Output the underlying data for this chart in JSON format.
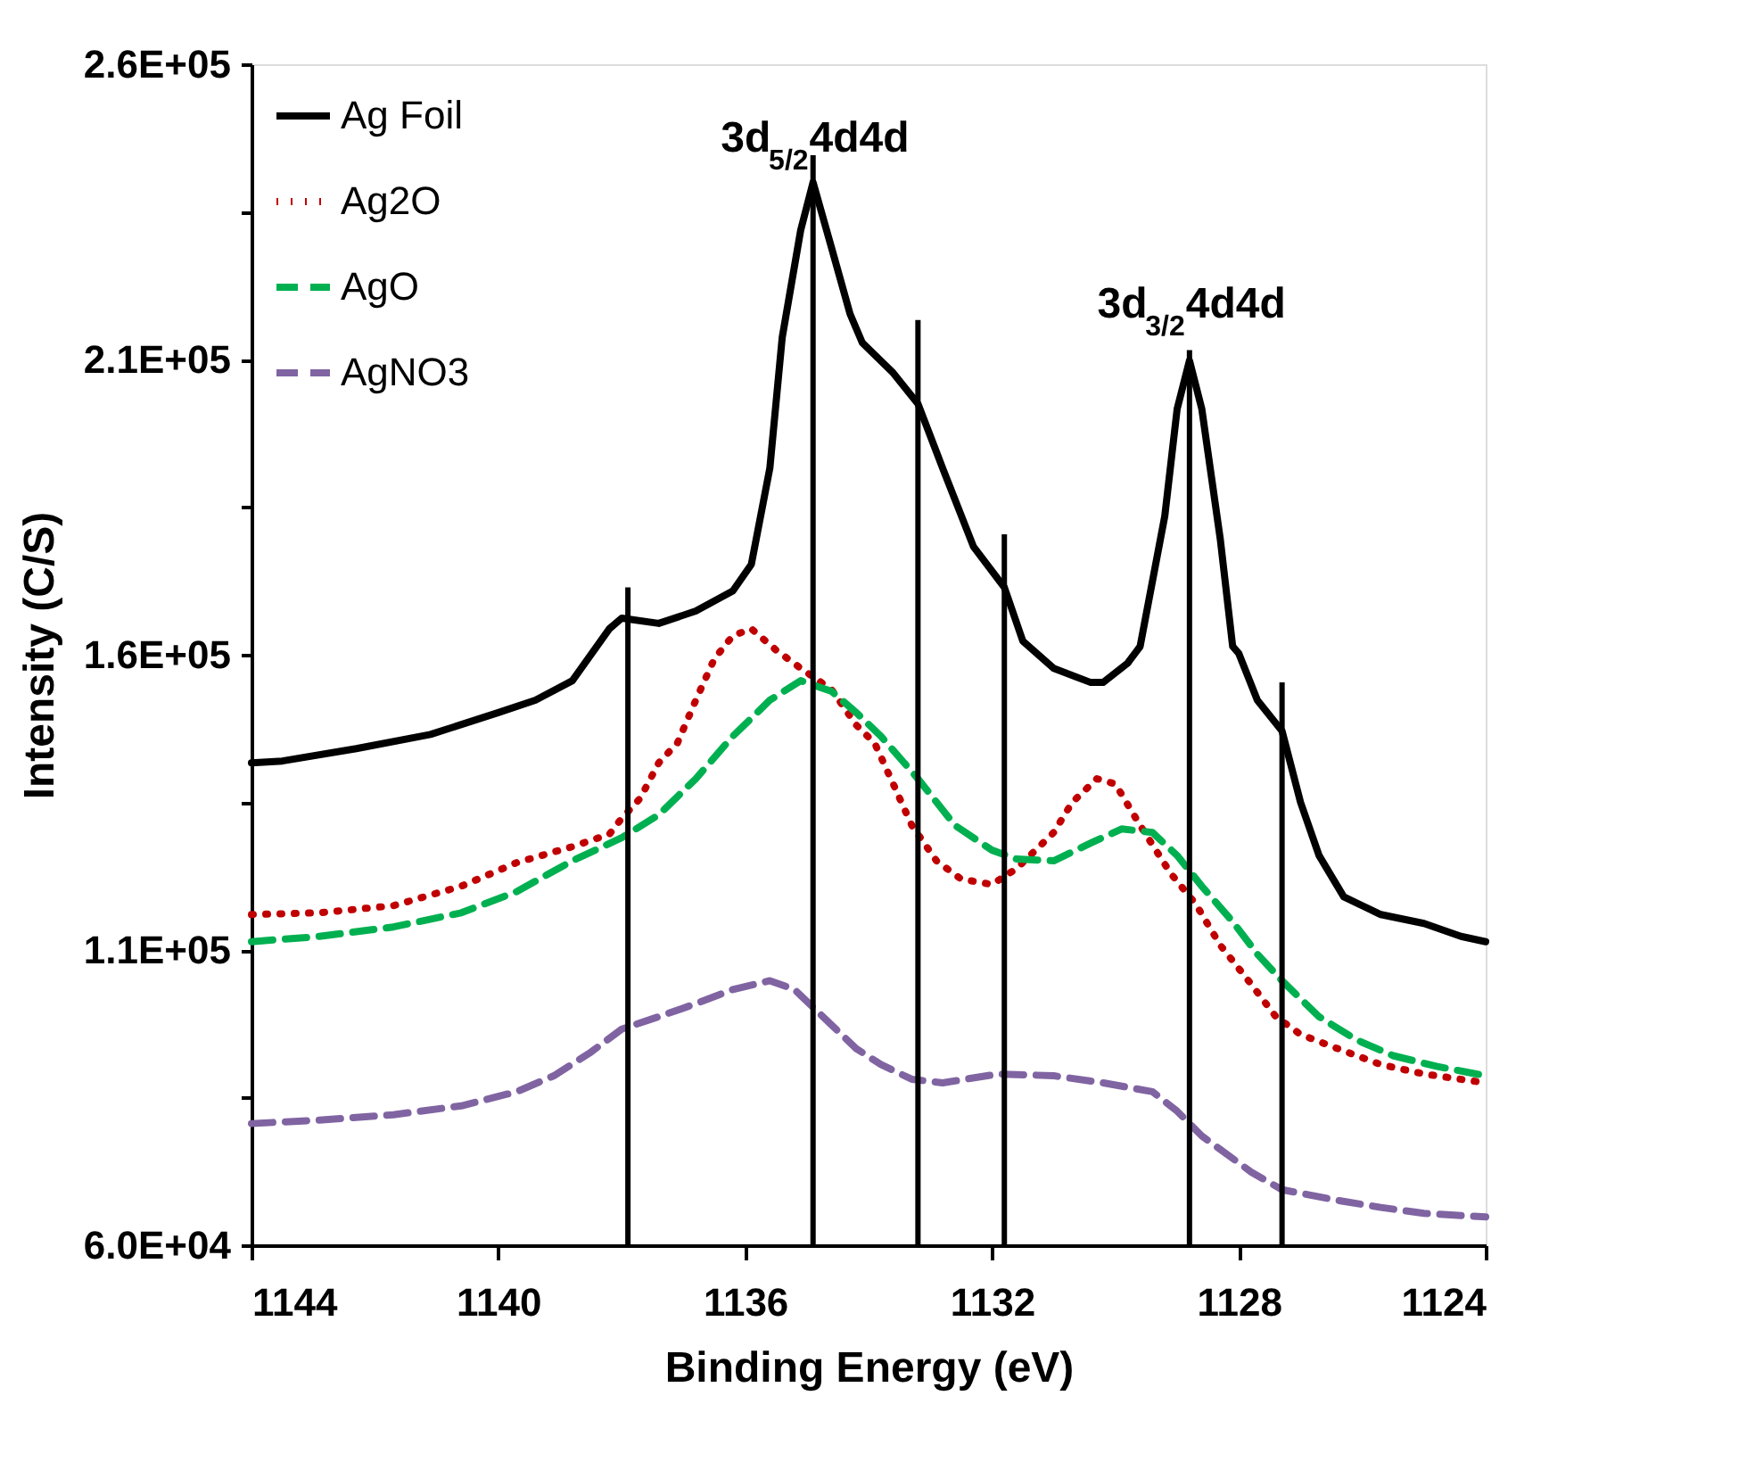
{
  "chart_data": {
    "type": "line",
    "xlabel": "Binding Energy (eV)",
    "ylabel": "Intensity (C/S)",
    "xlim": [
      1144,
      1124
    ],
    "xticks": [
      1144,
      1140,
      1136,
      1132,
      1128,
      1124
    ],
    "ylim": [
      60000,
      260000
    ],
    "yticks": [
      {
        "value": 60000,
        "label": "6.0E+04"
      },
      {
        "value": 85000,
        "label": null
      },
      {
        "value": 110000,
        "label": "1.1E+05"
      },
      {
        "value": 135000,
        "label": null
      },
      {
        "value": 160000,
        "label": "1.6E+05"
      },
      {
        "value": 185000,
        "label": null
      },
      {
        "value": 210000,
        "label": "2.1E+05"
      },
      {
        "value": 235000,
        "label": null
      },
      {
        "value": 260000,
        "label": "2.6E+05"
      }
    ],
    "grid": false,
    "legend": "top left",
    "series": [
      {
        "name": "Ag Foil",
        "color": "#000000",
        "line_style": "solid",
        "x": [
          1144,
          1143.5,
          1142.3,
          1141.1,
          1140.0,
          1139.4,
          1138.8,
          1138.2,
          1138.0,
          1137.4,
          1136.8,
          1136.2,
          1135.9,
          1135.6,
          1135.4,
          1135.1,
          1134.9,
          1134.6,
          1134.3,
          1134.1,
          1133.6,
          1133.2,
          1132.8,
          1132.3,
          1131.8,
          1131.5,
          1131.0,
          1130.4,
          1130.2,
          1129.8,
          1129.6,
          1129.2,
          1129.0,
          1128.8,
          1128.6,
          1128.3,
          1128.1,
          1128.0,
          1127.7,
          1127.3,
          1127.0,
          1126.7,
          1126.3,
          1125.7,
          1125.0,
          1124.4,
          1124
        ],
        "values": [
          141700,
          142000,
          144100,
          146500,
          150200,
          152300,
          155600,
          164400,
          166200,
          165300,
          167400,
          170800,
          175300,
          191600,
          213700,
          231900,
          240000,
          228900,
          217700,
          212800,
          207700,
          202500,
          191600,
          178300,
          171400,
          162300,
          157700,
          155300,
          155300,
          158600,
          161400,
          183500,
          201600,
          209800,
          201600,
          179500,
          161400,
          160200,
          152300,
          147100,
          135000,
          126000,
          119000,
          116000,
          114500,
          112300,
          111400
        ]
      },
      {
        "name": "Ag2O",
        "color": "#c00000",
        "line_style": "dotted",
        "x": [
          1144,
          1142.9,
          1141.7,
          1140.6,
          1139.7,
          1138.8,
          1138.2,
          1138.0,
          1137.7,
          1137.4,
          1137.1,
          1136.8,
          1136.5,
          1136.2,
          1135.9,
          1135.5,
          1135.1,
          1134.6,
          1134.2,
          1133.9,
          1133.6,
          1133.3,
          1132.9,
          1132.5,
          1132.0,
          1131.6,
          1131.0,
          1130.7,
          1130.3,
          1130.0,
          1129.6,
          1129.1,
          1128.7,
          1128.3,
          1127.8,
          1127.4,
          1127.0,
          1126.4,
          1125.7,
          1125.0,
          1124
        ],
        "values": [
          116000,
          116300,
          117500,
          120800,
          124800,
          127500,
          129600,
          132300,
          135700,
          141700,
          145000,
          152300,
          159300,
          163200,
          164400,
          160800,
          157700,
          154100,
          148100,
          145000,
          138100,
          131100,
          125100,
          122000,
          121100,
          123800,
          129900,
          135000,
          139000,
          138100,
          131100,
          122900,
          117800,
          110800,
          104200,
          98700,
          95700,
          93300,
          90600,
          89000,
          87500
        ]
      },
      {
        "name": "AgO",
        "color": "#00b050",
        "line_style": "dashed",
        "x": [
          1144,
          1142.9,
          1141.7,
          1140.6,
          1139.7,
          1138.8,
          1138.0,
          1137.4,
          1136.8,
          1136.2,
          1135.6,
          1135.1,
          1134.6,
          1134.2,
          1133.8,
          1133.2,
          1132.6,
          1132.0,
          1131.6,
          1131.0,
          1130.4,
          1129.9,
          1129.4,
          1129.0,
          1128.6,
          1128.1,
          1127.7,
          1127.3,
          1126.7,
          1126.1,
          1125.5,
          1124.8,
          1124
        ],
        "values": [
          111400,
          112300,
          113900,
          116300,
          119900,
          125100,
          129000,
          132900,
          139000,
          146200,
          152300,
          155600,
          153800,
          150200,
          146200,
          139000,
          131100,
          126900,
          125400,
          125100,
          128100,
          130500,
          129900,
          126000,
          120800,
          114800,
          109300,
          104800,
          98700,
          94800,
          92100,
          90300,
          88700
        ]
      },
      {
        "name": "AgNO3",
        "color": "#8064a2",
        "line_style": "dashed",
        "x": [
          1144,
          1142.9,
          1141.7,
          1140.6,
          1139.7,
          1139.1,
          1138.5,
          1138.0,
          1137.4,
          1136.8,
          1136.2,
          1135.6,
          1135.2,
          1134.8,
          1134.2,
          1133.8,
          1133.3,
          1132.8,
          1131.9,
          1131.0,
          1130.2,
          1129.4,
          1129.0,
          1128.6,
          1127.8,
          1127.3,
          1126.4,
          1125.7,
          1125.0,
          1124
        ],
        "values": [
          80600,
          81200,
          82100,
          83600,
          86000,
          88700,
          92700,
          96600,
          98700,
          100900,
          103300,
          104800,
          103300,
          99300,
          93300,
          90600,
          88100,
          87500,
          89000,
          88700,
          87500,
          86000,
          82700,
          78500,
          72400,
          69400,
          67600,
          66400,
          65400,
          64800
        ]
      },
      {
        "type": "bar",
        "color": "#000000",
        "x": [
          1137.9,
          1134.9,
          1133.2,
          1131.8,
          1128.8,
          1127.3
        ],
        "values": [
          171400,
          244600,
          216700,
          180400,
          211600,
          155300
        ]
      }
    ],
    "annotations": [
      {
        "text": "3d$_{5/2}$4d4d",
        "x": 1134.9,
        "y": 239400
      },
      {
        "text": "3d$_{3/2}$4d4d",
        "x": 1128.8,
        "y": 211300
      }
    ]
  }
}
